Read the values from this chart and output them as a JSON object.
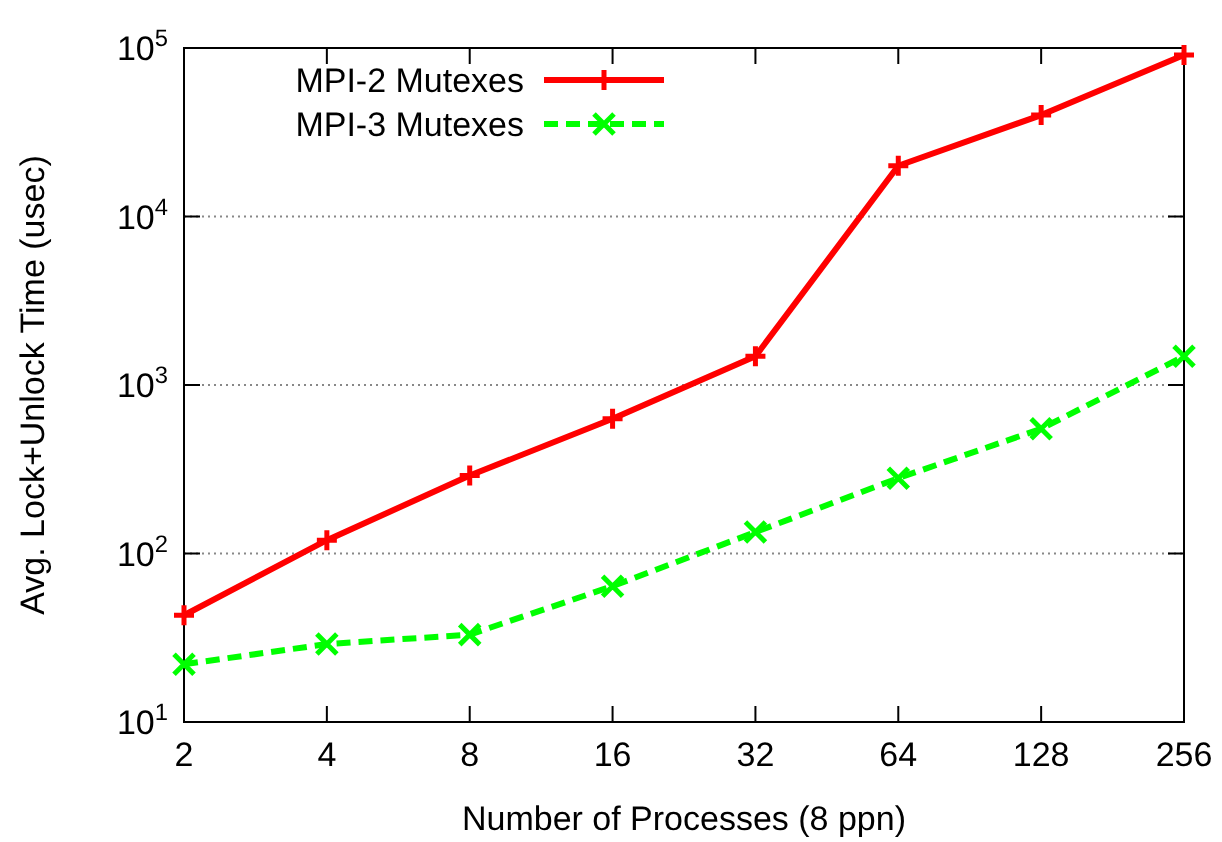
{
  "chart_data": {
    "type": "line",
    "xlabel": "Number of Processes (8 ppn)",
    "ylabel": "Avg. Lock+Unlock Time (usec)",
    "x": [
      2,
      4,
      8,
      16,
      32,
      64,
      128,
      256
    ],
    "xlim": [
      2,
      256
    ],
    "xticks": [
      2,
      4,
      8,
      16,
      32,
      64,
      128,
      256
    ],
    "ylim": [
      10,
      100000
    ],
    "yticks": [
      {
        "value": 10,
        "label": "10$^{1}$"
      },
      {
        "value": 100,
        "label": "10$^{2}$"
      },
      {
        "value": 1000,
        "label": "10$^{3}$"
      },
      {
        "value": 10000,
        "label": "10$^{4}$"
      },
      {
        "value": 100000,
        "label": "10$^{5}$"
      }
    ],
    "log": "xy",
    "grid": "y",
    "legend": "top left",
    "series": [
      {
        "name": "MPI-2 Mutexes",
        "color": "#ff0000",
        "marker": "plus",
        "line_style": "solid",
        "values": [
          43,
          120,
          290,
          630,
          1480,
          20000,
          40000,
          91000
        ]
      },
      {
        "name": "MPI-3 Mutexes",
        "color": "#00ff00",
        "marker": "cross",
        "line_style": "dashed",
        "values": [
          22,
          29,
          33,
          64,
          134,
          280,
          550,
          1480
        ]
      }
    ]
  }
}
